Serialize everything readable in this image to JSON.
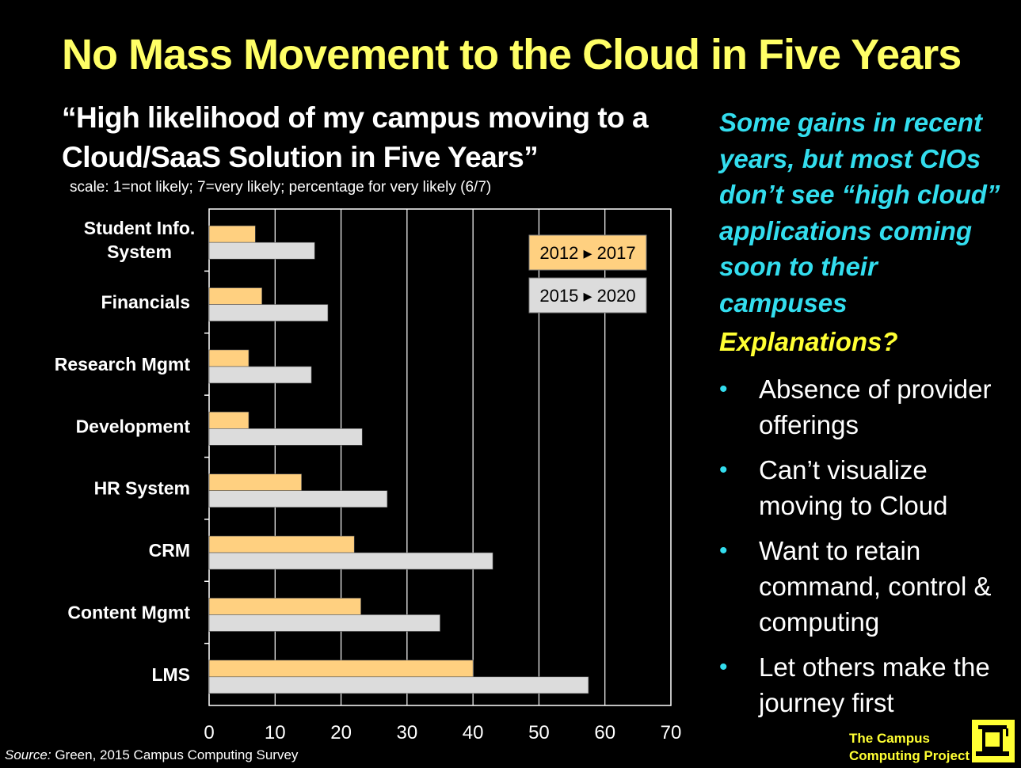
{
  "title": "No Mass Movement to the Cloud in Five Years",
  "subtitle_line1": "“High likelihood of my campus moving to a",
  "subtitle_line2": "Cloud/SaaS Solution in Five Years”",
  "scale_note": "scale: 1=not likely; 7=very likely; percentage for very likely  (6/7)",
  "right_panel": {
    "highlight_lines": [
      "Some gains in recent",
      "years, but most CIOs",
      "don’t see “high cloud”",
      "applications coming",
      "soon to their campuses"
    ],
    "explanations_heading": "Explanations?",
    "bullet_char": "•",
    "bullets": [
      "Absence of  provider offerings",
      "Can’t visualize moving to Cloud",
      "Want to retain command, control & computing",
      "Let others make the journey first"
    ]
  },
  "source": {
    "label": "Source:",
    "text": " Green, 2015  Campus Computing Survey"
  },
  "brand": {
    "line1": "The Campus",
    "line2": "Computing Project"
  },
  "colors": {
    "series_2017": "#ffd080",
    "series_2020": "#dcdcdc",
    "title": "#ffff66",
    "highlight": "#33ddee"
  },
  "chart_data": {
    "type": "bar",
    "orientation": "horizontal",
    "categories": [
      "Student Info.\nSystem",
      "Financials",
      "Research Mgmt",
      "Development",
      "HR System",
      "CRM",
      "Content Mgmt",
      "LMS"
    ],
    "series": [
      {
        "name": "2012 ▸ 2017",
        "values": [
          7,
          8,
          6,
          6,
          14,
          22,
          23,
          40
        ]
      },
      {
        "name": "2015 ▸ 2020",
        "values": [
          16,
          18,
          15.5,
          23.2,
          27,
          43,
          35,
          57.5
        ]
      }
    ],
    "xlim": [
      0,
      70
    ],
    "xticks": [
      0,
      10,
      20,
      30,
      40,
      50,
      60,
      70
    ],
    "xlabel": "",
    "ylabel": "",
    "grid": true,
    "legend": "top-right"
  }
}
